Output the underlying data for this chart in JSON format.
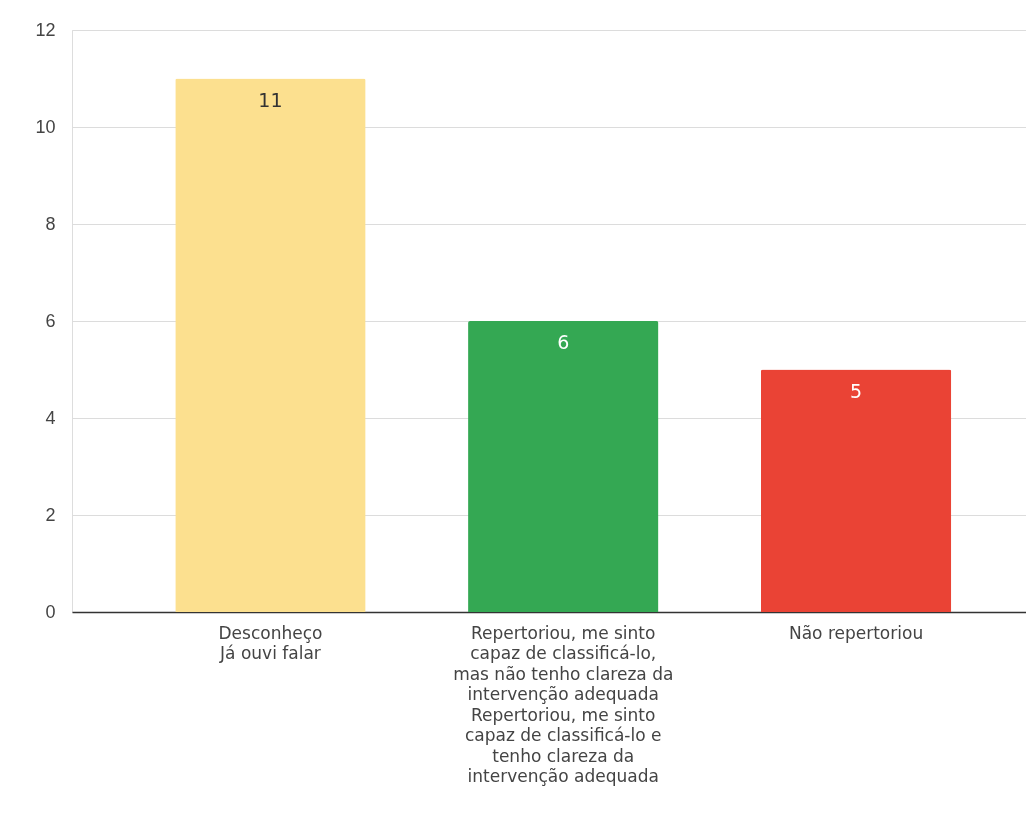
{
  "chart_data": {
    "type": "bar",
    "categories": [
      "Desconheço\nJá ouvi falar",
      "Repertoriou, me sinto capaz de classificá-lo, mas não tenho clareza da intervenção adequada\nRepertoriou, me sinto capaz de classificá-lo e tenho clareza da intervenção adequada",
      "Não repertoriou"
    ],
    "values": [
      11,
      6,
      5
    ],
    "colors": [
      "#fce08f",
      "#34a853",
      "#ea4335"
    ],
    "ylim": [
      0,
      12
    ],
    "yticks": [
      0,
      2,
      4,
      6,
      8,
      10,
      12
    ],
    "grid": "y",
    "data_labels": true
  }
}
